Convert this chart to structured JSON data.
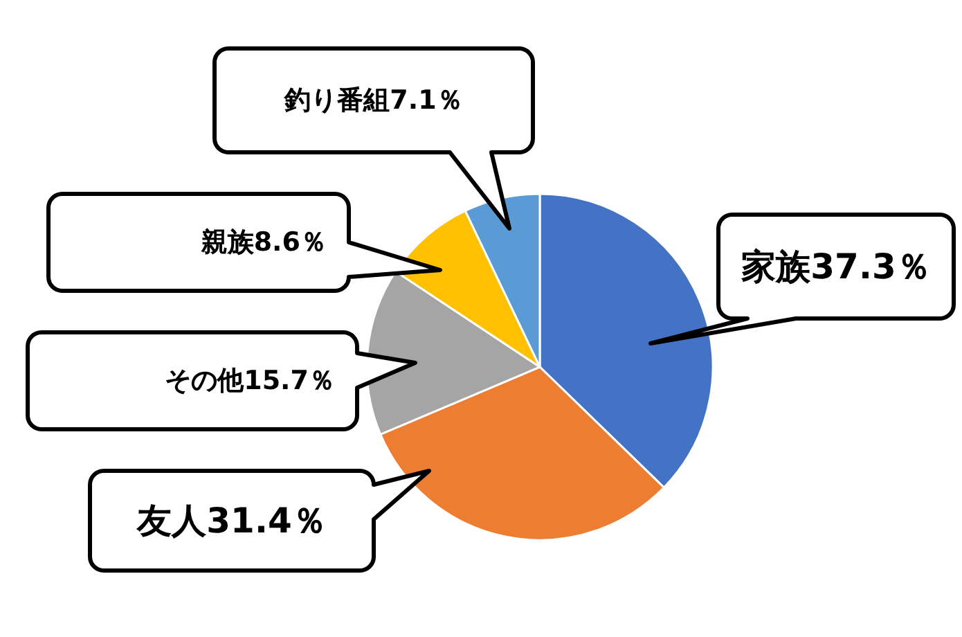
{
  "chart_data": {
    "type": "pie",
    "categories": [
      "家族",
      "友人",
      "その他",
      "親族",
      "釣り番組"
    ],
    "values": [
      37.3,
      31.4,
      15.7,
      8.6,
      7.1
    ],
    "colors": [
      "#4472c4",
      "#ed7d31",
      "#a5a5a5",
      "#ffc000",
      "#5b9bd5"
    ],
    "value_labels": [
      "37.3％",
      "31.4％",
      "15.7％",
      "8.6％",
      "7.1％"
    ]
  }
}
